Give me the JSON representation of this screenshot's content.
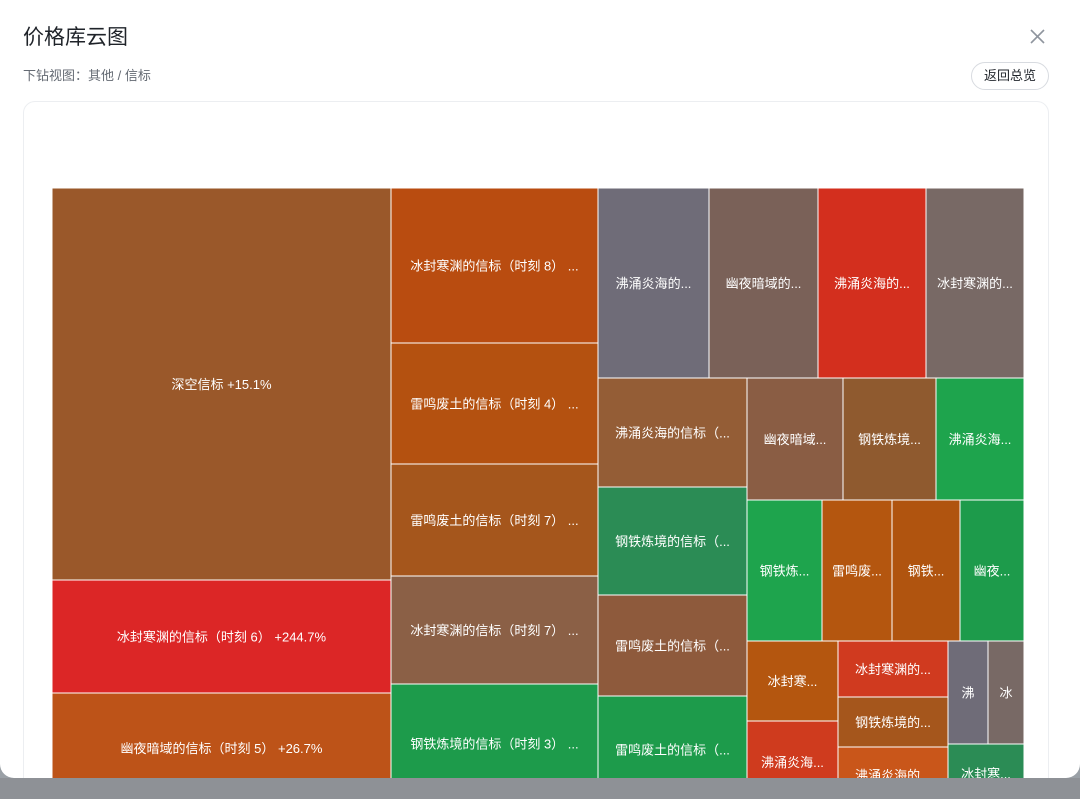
{
  "dialog": {
    "title": "价格库云图",
    "breadcrumb": "下钻视图：其他 / 信标",
    "back_label": "返回总览"
  },
  "chart_data": {
    "type": "treemap",
    "title": "",
    "cells": [
      {
        "label": "深空信标 +15.1%",
        "color": "#9a582a"
      },
      {
        "label": "冰封寒渊的信标（时刻 6） +244.7%",
        "color": "#dc2626"
      },
      {
        "label": "幽夜暗域的信标（时刻 5） +26.7%",
        "color": "#bd5318"
      },
      {
        "label": "冰封寒渊的信标（时刻 8） ...",
        "color": "#b94c10"
      },
      {
        "label": "雷鸣废土的信标（时刻 4） ...",
        "color": "#b45110"
      },
      {
        "label": "雷鸣废土的信标（时刻 7） ...",
        "color": "#a5561c"
      },
      {
        "label": "冰封寒渊的信标（时刻 7） ...",
        "color": "#8b6046"
      },
      {
        "label": "钢铁炼境的信标（时刻 3） ...",
        "color": "#1d9b4b"
      },
      {
        "label": "沸涌炎海的...",
        "color": "#6f6c78"
      },
      {
        "label": "幽夜暗域的...",
        "color": "#7a6158"
      },
      {
        "label": "沸涌炎海的...",
        "color": "#d32f1e"
      },
      {
        "label": "冰封寒渊的...",
        "color": "#786965"
      },
      {
        "label": "沸涌炎海的信标（...",
        "color": "#945d36"
      },
      {
        "label": "幽夜暗域...",
        "color": "#8a5d44"
      },
      {
        "label": "钢铁炼境...",
        "color": "#8f5a2f"
      },
      {
        "label": "沸涌炎海...",
        "color": "#1ea44d"
      },
      {
        "label": "钢铁炼境的信标（...",
        "color": "#2b8c55"
      },
      {
        "label": "雷鸣废土的信标（...",
        "color": "#8e5a3c"
      },
      {
        "label": "雷鸣废土的信标（...",
        "color": "#1d9b4b"
      },
      {
        "label": "钢铁炼...",
        "color": "#1ea44d"
      },
      {
        "label": "雷鸣废...",
        "color": "#b4560f"
      },
      {
        "label": "钢铁...",
        "color": "#b0540f"
      },
      {
        "label": "幽夜...",
        "color": "#1d9b4b"
      },
      {
        "label": "冰封寒...",
        "color": "#b4560f"
      },
      {
        "label": "冰封寒渊的...",
        "color": "#d03a1f"
      },
      {
        "label": "钢铁炼境的...",
        "color": "#a5561c"
      },
      {
        "label": "沸涌炎海...",
        "color": "#cf3b1e"
      },
      {
        "label": "沸涌炎海的...",
        "color": "#c9561a"
      },
      {
        "label": "沸",
        "color": "#6f6c78"
      },
      {
        "label": "冰",
        "color": "#786965"
      },
      {
        "label": "冰封寒...",
        "color": "#2b8c55"
      }
    ]
  }
}
